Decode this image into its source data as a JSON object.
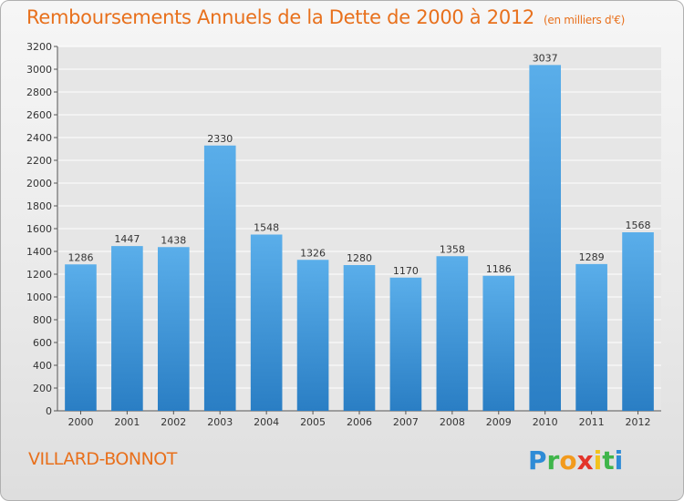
{
  "title": "Remboursements Annuels de la Dette de 2000 à 2012",
  "unit": "(en milliers d'€)",
  "city": "VILLARD-BONNOT",
  "logo": "Proxiti",
  "colors": {
    "accent": "#e8701c",
    "bar_top": "#5aaeea",
    "bar_bottom": "#2a7ec4"
  },
  "chart_data": {
    "type": "bar",
    "categories": [
      "2000",
      "2001",
      "2002",
      "2003",
      "2004",
      "2005",
      "2006",
      "2007",
      "2008",
      "2009",
      "2010",
      "2011",
      "2012"
    ],
    "values": [
      1286,
      1447,
      1438,
      2330,
      1548,
      1326,
      1280,
      1170,
      1358,
      1186,
      3037,
      1289,
      1568
    ],
    "ylim": [
      0,
      3200
    ],
    "yticks": [
      0,
      200,
      400,
      600,
      800,
      1000,
      1200,
      1400,
      1600,
      1800,
      2000,
      2200,
      2400,
      2600,
      2800,
      3000,
      3200
    ],
    "grid": true,
    "data_labels": true
  }
}
